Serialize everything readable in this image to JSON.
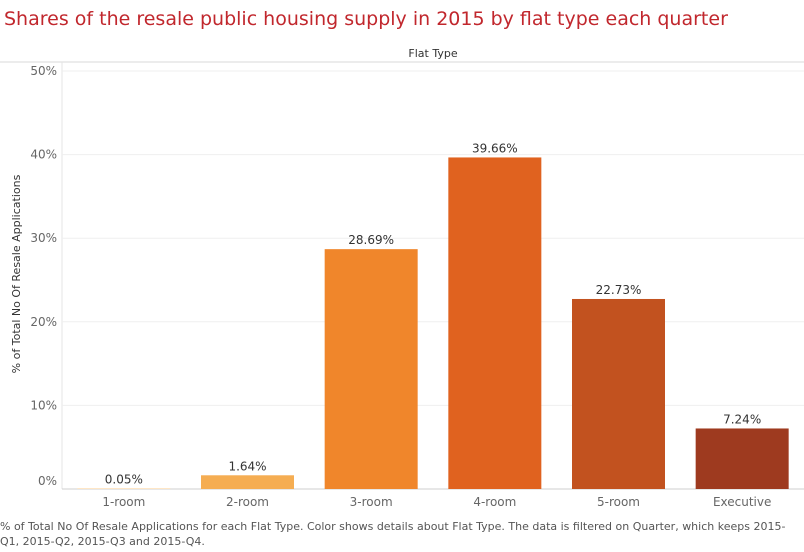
{
  "title": "Shares of the resale public housing supply in 2015 by flat type each quarter",
  "footer": "% of Total No Of Resale Applications for each Flat Type.  Color shows details about Flat Type. The data is filtered on Quarter, which keeps 2015-Q1, 2015-Q2, 2015-Q3 and 2015-Q4.",
  "chart_data": {
    "type": "bar",
    "column_header": "Flat Type",
    "ylabel": "% of Total No Of Resale Applications",
    "ylim": [
      0,
      50
    ],
    "yticks": [
      {
        "value": 0,
        "label": "0%"
      },
      {
        "value": 10,
        "label": "10%"
      },
      {
        "value": 20,
        "label": "20%"
      },
      {
        "value": 30,
        "label": "30%"
      },
      {
        "value": 40,
        "label": "40%"
      },
      {
        "value": 50,
        "label": "50%"
      }
    ],
    "categories": [
      "1-room",
      "2-room",
      "3-room",
      "4-room",
      "5-room",
      "Executive"
    ],
    "values": [
      0.05,
      1.64,
      28.69,
      39.66,
      22.73,
      7.24
    ],
    "data_labels": [
      "0.05%",
      "1.64%",
      "28.69%",
      "39.66%",
      "22.73%",
      "7.24%"
    ],
    "colors": [
      "#fdd6a0",
      "#f5ad52",
      "#f0862b",
      "#e0621f",
      "#c2521f",
      "#9e3a1f"
    ],
    "grid": true
  }
}
